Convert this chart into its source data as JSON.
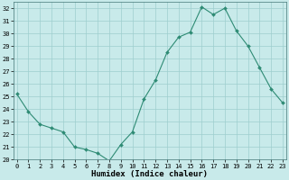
{
  "x": [
    0,
    1,
    2,
    3,
    4,
    5,
    6,
    7,
    8,
    9,
    10,
    11,
    12,
    13,
    14,
    15,
    16,
    17,
    18,
    19,
    20,
    21,
    22,
    23
  ],
  "y": [
    25.2,
    23.8,
    22.8,
    22.5,
    22.2,
    21.0,
    20.8,
    20.5,
    19.9,
    21.2,
    22.2,
    24.8,
    26.3,
    28.5,
    29.7,
    30.1,
    32.1,
    31.5,
    32.0,
    30.2,
    29.0,
    27.3,
    25.6,
    24.5
  ],
  "line_color": "#2e8b74",
  "marker": "D",
  "marker_size": 2,
  "bg_color": "#c8eaea",
  "grid_color": "#9ecece",
  "xlabel": "Humidex (Indice chaleur)",
  "ylabel": "",
  "ylim": [
    20,
    32.5
  ],
  "yticks": [
    20,
    21,
    22,
    23,
    24,
    25,
    26,
    27,
    28,
    29,
    30,
    31,
    32
  ],
  "xticks": [
    0,
    1,
    2,
    3,
    4,
    5,
    6,
    7,
    8,
    9,
    10,
    11,
    12,
    13,
    14,
    15,
    16,
    17,
    18,
    19,
    20,
    21,
    22,
    23
  ],
  "xlim": [
    -0.3,
    23.3
  ],
  "tick_fontsize": 5.0,
  "xlabel_fontsize": 6.5
}
